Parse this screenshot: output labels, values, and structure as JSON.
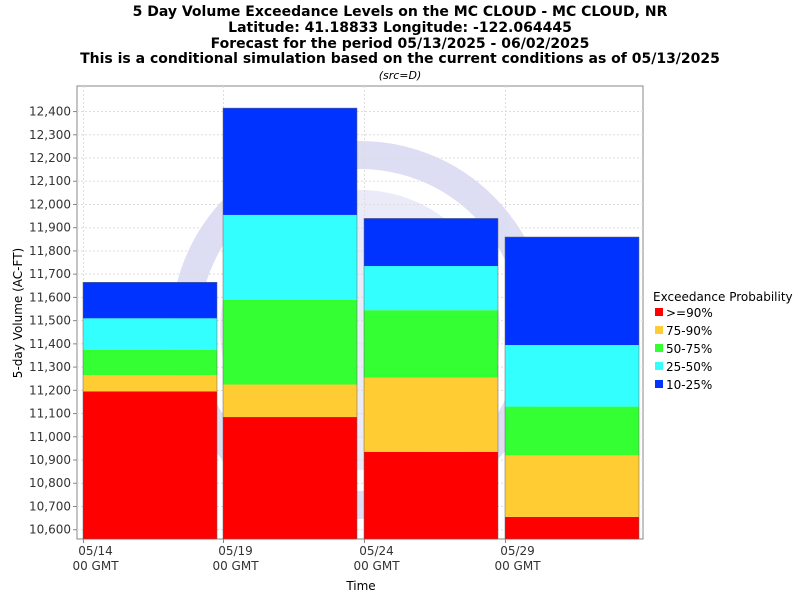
{
  "chart_data": {
    "type": "bar",
    "stacked": true,
    "title_lines": [
      "5 Day Volume Exceedance Levels on the MC CLOUD - MC CLOUD, NR",
      "Latitude: 41.18833 Longitude: -122.064445",
      "Forecast for the period 05/13/2025 - 06/02/2025",
      "This is a conditional simulation based on the current conditions as of 05/13/2025"
    ],
    "subtitle": "(src=D)",
    "ylabel": "5-day Volume (AC-FT)",
    "xlabel": "Time",
    "ylim": [
      10560,
      12510
    ],
    "yticks": [
      10600,
      10700,
      10800,
      10900,
      11000,
      11100,
      11200,
      11300,
      11400,
      11500,
      11600,
      11700,
      11800,
      11900,
      12000,
      12100,
      12200,
      12300,
      12400
    ],
    "ytick_labels": [
      "10,600",
      "10,700",
      "10,800",
      "10,900",
      "11,000",
      "11,100",
      "11,200",
      "11,300",
      "11,400",
      "11,500",
      "11,600",
      "11,700",
      "11,800",
      "11,900",
      "12,000",
      "12,100",
      "12,200",
      "12,300",
      "12,400"
    ],
    "xticks": [
      {
        "line1": "05/14",
        "line2": "00 GMT"
      },
      {
        "line1": "05/19",
        "line2": "00 GMT"
      },
      {
        "line1": "05/24",
        "line2": "00 GMT"
      },
      {
        "line1": "05/29",
        "line2": "00 GMT"
      }
    ],
    "grid": true,
    "legend": {
      "title": "Exceedance Probability",
      "position": "right",
      "entries": [
        {
          "label": ">=90%",
          "color": "#ff0000"
        },
        {
          "label": "75-90%",
          "color": "#ffcc33"
        },
        {
          "label": "50-75%",
          "color": "#33ff33"
        },
        {
          "label": "25-50%",
          "color": "#33ffff"
        },
        {
          "label": "10-25%",
          "color": "#0033ff"
        }
      ]
    },
    "bars": [
      {
        "period": "05/14",
        "levels": [
          11195,
          11265,
          11375,
          11510,
          11665
        ]
      },
      {
        "period": "05/19",
        "levels": [
          11085,
          11225,
          11590,
          11955,
          12415
        ]
      },
      {
        "period": "05/24",
        "levels": [
          10935,
          11255,
          11545,
          11735,
          11940
        ]
      },
      {
        "period": "05/29",
        "levels": [
          10655,
          10920,
          11130,
          11395,
          11860
        ]
      }
    ]
  }
}
